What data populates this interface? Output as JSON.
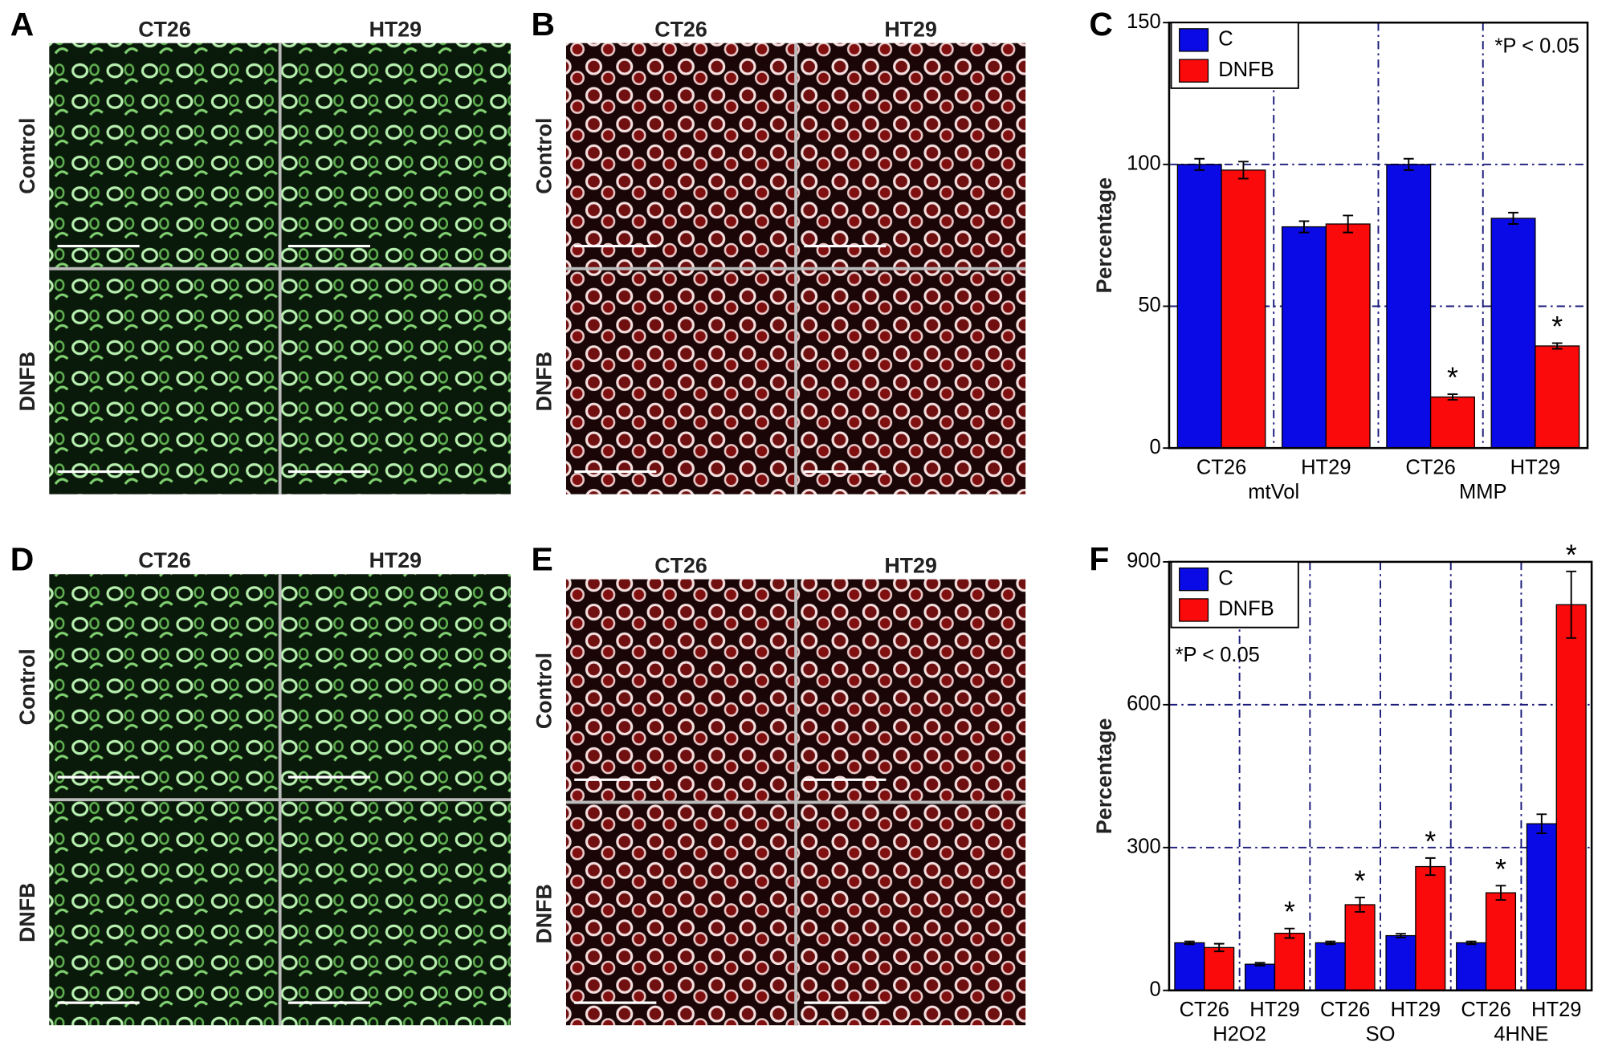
{
  "figure": {
    "panels": [
      {
        "letter": "A",
        "columns": [
          "CT26",
          "HT29"
        ],
        "rows": [
          "Control",
          "DNFB"
        ]
      },
      {
        "letter": "B",
        "columns": [
          "CT26",
          "HT29"
        ],
        "rows": [
          "Control",
          "DNFB"
        ]
      },
      {
        "letter": "D",
        "columns": [
          "CT26",
          "HT29"
        ],
        "rows": [
          "Control",
          "DNFB"
        ]
      },
      {
        "letter": "E",
        "columns": [
          "CT26",
          "HT29"
        ],
        "rows": [
          "Control",
          "DNFB"
        ]
      }
    ]
  },
  "chart_data": [
    {
      "type": "bar",
      "panel_label": "C",
      "y_label": "Percentage",
      "annotation": "*P < 0.05",
      "categories": [
        "CT26",
        "HT29",
        "CT26",
        "HT29"
      ],
      "groups": [
        "mtVol",
        "MMP"
      ],
      "ylim": [
        0,
        150
      ],
      "yticks": [
        0,
        50,
        100,
        150
      ],
      "grid": true,
      "legend": "top-left",
      "series": [
        {
          "name": "C",
          "color": "#0a0ae6",
          "values": [
            100,
            78,
            100,
            81
          ],
          "errors": [
            2,
            2,
            2,
            2
          ]
        },
        {
          "name": "DNFB",
          "color": "#fa0a0a",
          "values": [
            98,
            79,
            18,
            36
          ],
          "errors": [
            3,
            3,
            1,
            1
          ],
          "significance_labels": [
            null,
            null,
            "*",
            "*"
          ]
        }
      ]
    },
    {
      "type": "bar",
      "panel_label": "F",
      "y_label": "Percentage",
      "annotation": "*P < 0.05",
      "categories": [
        "CT26",
        "HT29",
        "CT26",
        "HT29",
        "CT26",
        "HT29"
      ],
      "groups": [
        "H2O2",
        "SO",
        "4HNE"
      ],
      "ylim": [
        0,
        900
      ],
      "yticks": [
        0,
        300,
        600,
        900
      ],
      "grid": true,
      "legend": "top-left",
      "series": [
        {
          "name": "C",
          "color": "#0a0ae6",
          "values": [
            100,
            55,
            100,
            115,
            100,
            350
          ],
          "errors": [
            3,
            3,
            3,
            4,
            3,
            20
          ]
        },
        {
          "name": "DNFB",
          "color": "#fa0a0a",
          "values": [
            90,
            120,
            180,
            260,
            205,
            810
          ],
          "errors": [
            8,
            10,
            15,
            18,
            15,
            70
          ],
          "significance_labels": [
            null,
            "*",
            "*",
            "*",
            "*",
            "*"
          ]
        }
      ]
    }
  ]
}
